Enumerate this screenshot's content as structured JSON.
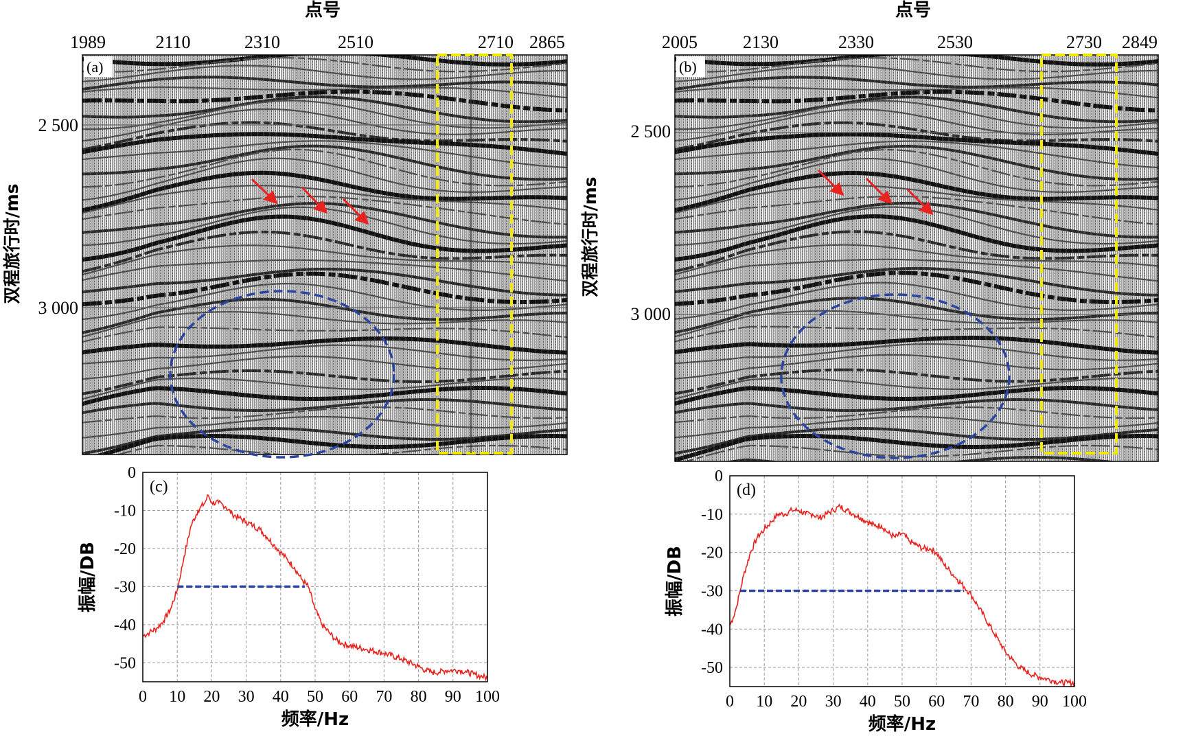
{
  "panels": {
    "a": {
      "label": "(a)",
      "xaxis_title": "点号",
      "xticks": [
        "1989",
        "2110",
        "2310",
        "2510",
        "2710",
        "2865"
      ],
      "yaxis_title": "双程旅行时/ms",
      "yticks": [
        "2 500",
        "3 000"
      ]
    },
    "b": {
      "label": "(b)",
      "xaxis_title": "点号",
      "xticks": [
        "2005",
        "2130",
        "2330",
        "2530",
        "2730",
        "2849"
      ],
      "yaxis_title": "双程旅行时/ms",
      "yticks": [
        "2 500",
        "3 000"
      ]
    }
  },
  "chart_data": [
    {
      "type": "line",
      "panel_label": "(c)",
      "xlabel": "频率/Hz",
      "ylabel": "振幅/DB",
      "xlim": [
        0,
        100
      ],
      "ylim": [
        -55,
        0
      ],
      "xticks": [
        0,
        10,
        20,
        30,
        40,
        50,
        60,
        70,
        80,
        90,
        100
      ],
      "yticks": [
        0,
        -10,
        -20,
        -30,
        -40,
        -50
      ],
      "grid": true,
      "line_color": "#e8231f",
      "marker_color": "#2c45a0",
      "series": [
        {
          "x": [
            0,
            2,
            4,
            6,
            8,
            10,
            12,
            14,
            16,
            18,
            19,
            20,
            22,
            24,
            26,
            28,
            30,
            32,
            34,
            36,
            38,
            40,
            42,
            44,
            46,
            48,
            50,
            52,
            54,
            56,
            58,
            60,
            65,
            70,
            75,
            80,
            82,
            84,
            86,
            88,
            90,
            92,
            94,
            96,
            98,
            100
          ],
          "y": [
            -43,
            -42,
            -41,
            -39,
            -36,
            -31,
            -22,
            -14,
            -10,
            -8,
            -6,
            -8,
            -8,
            -9,
            -11,
            -12,
            -13,
            -14,
            -15,
            -17,
            -19,
            -21,
            -23,
            -25,
            -28,
            -30,
            -36,
            -40,
            -42,
            -44,
            -45,
            -45.5,
            -46.5,
            -47.5,
            -49,
            -51,
            -52,
            -52.5,
            -52.5,
            -52,
            -52,
            -52,
            -52.5,
            -53,
            -53.5,
            -54
          ]
        }
      ],
      "bandwidth_marker": {
        "x": [
          10,
          47
        ],
        "y": -30
      }
    },
    {
      "type": "line",
      "panel_label": "(d)",
      "xlabel": "频率/Hz",
      "ylabel": "振幅/DB",
      "xlim": [
        0,
        100
      ],
      "ylim": [
        -55,
        0
      ],
      "xticks": [
        0,
        10,
        20,
        30,
        40,
        50,
        60,
        70,
        80,
        90,
        100
      ],
      "yticks": [
        0,
        -10,
        -20,
        -30,
        -40,
        -50
      ],
      "grid": true,
      "line_color": "#e8231f",
      "marker_color": "#2c45a0",
      "series": [
        {
          "x": [
            0,
            1,
            2,
            3,
            4,
            6,
            8,
            10,
            12,
            14,
            16,
            18,
            20,
            22,
            24,
            26,
            28,
            30,
            32,
            34,
            36,
            38,
            40,
            42,
            44,
            46,
            48,
            50,
            52,
            54,
            56,
            58,
            60,
            62,
            64,
            66,
            68,
            70,
            72,
            74,
            76,
            78,
            80,
            82,
            84,
            86,
            88,
            90,
            92,
            94,
            96,
            98,
            100
          ],
          "y": [
            -39,
            -37,
            -34,
            -30,
            -26,
            -20,
            -16,
            -14,
            -12,
            -10,
            -10,
            -9,
            -9,
            -10,
            -10,
            -11,
            -10,
            -9,
            -8,
            -9,
            -10,
            -11,
            -12,
            -13,
            -13,
            -15,
            -16,
            -15,
            -17,
            -18,
            -19,
            -19,
            -20,
            -23,
            -25,
            -27,
            -29,
            -31,
            -34,
            -37,
            -40,
            -43,
            -46,
            -48,
            -50,
            -51,
            -52,
            -52.5,
            -53,
            -53.5,
            -54,
            -54,
            -54
          ]
        }
      ],
      "bandwidth_marker": {
        "x": [
          3,
          68
        ],
        "y": -30
      }
    }
  ]
}
